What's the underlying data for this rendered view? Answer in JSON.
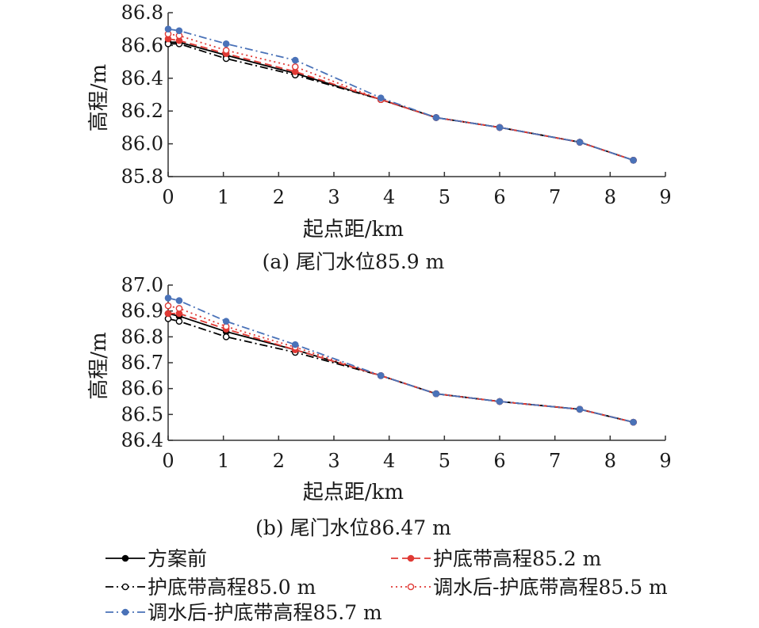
{
  "chart_data": [
    {
      "type": "line",
      "caption": "(a) 尾门水位85.9 m",
      "xlabel": "起点距/km",
      "ylabel": "高程/m",
      "xlim": [
        0,
        9
      ],
      "ylim": [
        85.8,
        86.8
      ],
      "xticks": [
        0,
        1,
        2,
        3,
        4,
        5,
        6,
        7,
        8,
        9
      ],
      "yticks": [
        "85.8",
        "86.0",
        "86.2",
        "86.4",
        "86.6",
        "86.8"
      ],
      "x": [
        0,
        0.2,
        1.05,
        2.3,
        3.85,
        4.85,
        6.0,
        7.45,
        8.42
      ],
      "series": [
        {
          "name": "方案前",
          "values": [
            86.62,
            86.62,
            86.54,
            86.43,
            86.27,
            86.16,
            86.1,
            86.01,
            85.9
          ]
        },
        {
          "name": "护底带高程85.0 m",
          "values": [
            86.61,
            86.61,
            86.52,
            86.42,
            86.27,
            86.16,
            86.1,
            86.01,
            85.9
          ]
        },
        {
          "name": "护底带高程85.2 m",
          "values": [
            86.64,
            86.63,
            86.55,
            86.44,
            86.27,
            86.16,
            86.1,
            86.01,
            85.9
          ]
        },
        {
          "name": "调水后-护底带高程85.5 m",
          "values": [
            86.67,
            86.66,
            86.57,
            86.47,
            86.27,
            86.16,
            86.1,
            86.01,
            85.9
          ]
        },
        {
          "name": "调水后-护底带高程85.7 m",
          "values": [
            86.7,
            86.69,
            86.61,
            86.51,
            86.28,
            86.16,
            86.1,
            86.01,
            85.9
          ]
        }
      ]
    },
    {
      "type": "line",
      "caption": "(b) 尾门水位86.47 m",
      "xlabel": "起点距/km",
      "ylabel": "高程/m",
      "xlim": [
        0,
        9
      ],
      "ylim": [
        86.4,
        87.0
      ],
      "xticks": [
        0,
        1,
        2,
        3,
        4,
        5,
        6,
        7,
        8,
        9
      ],
      "yticks": [
        "86.4",
        "86.5",
        "86.6",
        "86.7",
        "86.8",
        "86.9",
        "87.0"
      ],
      "x": [
        0,
        0.2,
        1.05,
        2.3,
        3.85,
        4.85,
        6.0,
        7.45,
        8.42
      ],
      "series": [
        {
          "name": "方案前",
          "values": [
            86.89,
            86.88,
            86.82,
            86.75,
            86.65,
            86.58,
            86.55,
            86.52,
            86.47
          ]
        },
        {
          "name": "护底带高程85.0 m",
          "values": [
            86.87,
            86.86,
            86.8,
            86.74,
            86.65,
            86.58,
            86.55,
            86.52,
            86.47
          ]
        },
        {
          "name": "护底带高程85.2 m",
          "values": [
            86.89,
            86.89,
            86.83,
            86.75,
            86.65,
            86.58,
            86.55,
            86.52,
            86.47
          ]
        },
        {
          "name": "调水后-护底带高程85.5 m",
          "values": [
            86.92,
            86.91,
            86.84,
            86.76,
            86.65,
            86.58,
            86.55,
            86.52,
            86.47
          ]
        },
        {
          "name": "调水后-护底带高程85.7 m",
          "values": [
            86.95,
            86.94,
            86.86,
            86.77,
            86.65,
            86.58,
            86.55,
            86.52,
            86.47
          ]
        }
      ]
    }
  ],
  "legend": {
    "placement": "bottom",
    "items": [
      {
        "label": "方案前",
        "color": "#000000",
        "dash": "solid",
        "marker": "filled"
      },
      {
        "label": "护底带高程85.2 m",
        "color": "#e03a35",
        "dash": "dashed",
        "marker": "filled"
      },
      {
        "label": "护底带高程85.0 m",
        "color": "#000000",
        "dash": "dashdot",
        "marker": "hollow"
      },
      {
        "label": "调水后-护底带高程85.5 m",
        "color": "#e03a35",
        "dash": "dotted",
        "marker": "hollow"
      },
      {
        "label": "调水后-护底带高程85.7 m",
        "color": "#4a72b8",
        "dash": "dashdot",
        "marker": "filled"
      }
    ]
  }
}
